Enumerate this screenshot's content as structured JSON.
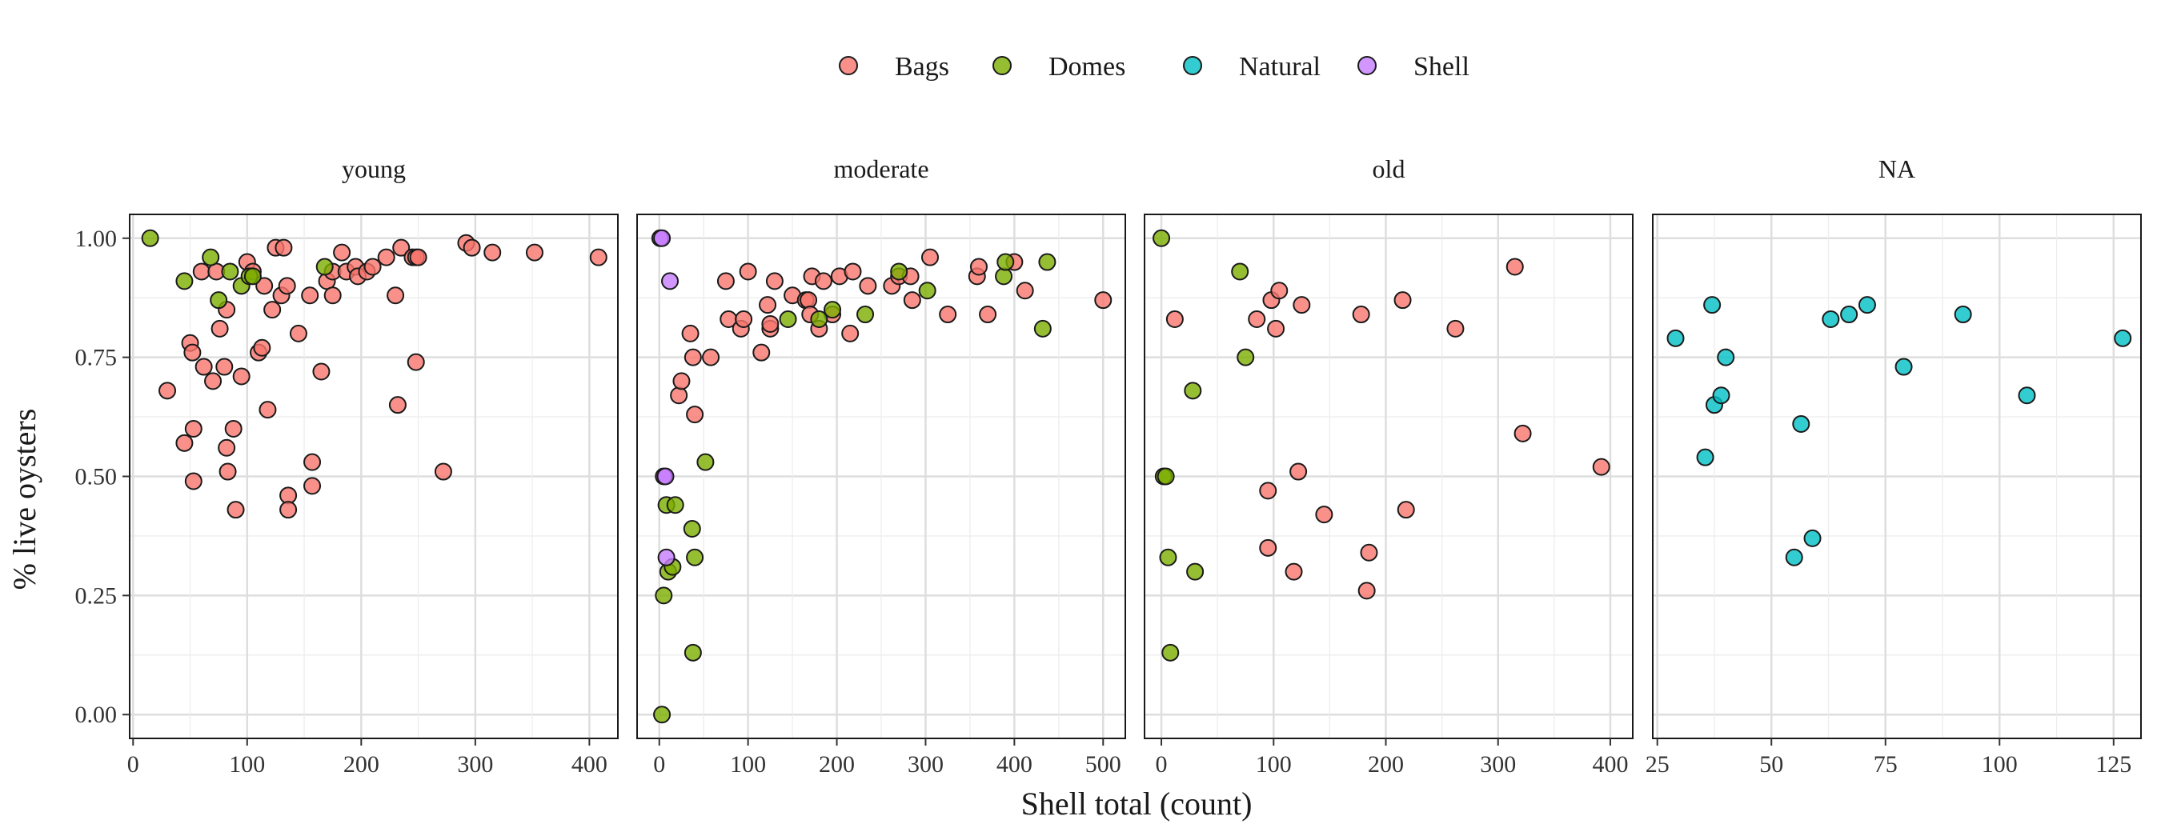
{
  "chart_data": {
    "type": "scatter",
    "xlabel": "Shell total (count)",
    "ylabel": "% live oysters",
    "legend": {
      "position": "top",
      "items": [
        {
          "name": "Bags",
          "color": "#F8766D"
        },
        {
          "name": "Domes",
          "color": "#7CAE00"
        },
        {
          "name": "Natural",
          "color": "#00BFC4"
        },
        {
          "name": "Shell",
          "color": "#C77CFF"
        }
      ]
    },
    "y_ticks": [
      "0.00",
      "0.25",
      "0.50",
      "0.75",
      "1.00"
    ],
    "ylim": [
      -0.05,
      1.05
    ],
    "grid": true,
    "facets": [
      {
        "label": "young",
        "xlim": [
          -3,
          425
        ],
        "x_ticks": [
          0,
          100,
          200,
          300,
          400
        ],
        "series": [
          {
            "name": "Bags",
            "points": [
              [
                30,
                0.68
              ],
              [
                45,
                0.57
              ],
              [
                50,
                0.78
              ],
              [
                52,
                0.76
              ],
              [
                53,
                0.6
              ],
              [
                53,
                0.49
              ],
              [
                60,
                0.93
              ],
              [
                62,
                0.73
              ],
              [
                70,
                0.7
              ],
              [
                73,
                0.93
              ],
              [
                76,
                0.81
              ],
              [
                80,
                0.73
              ],
              [
                82,
                0.85
              ],
              [
                82,
                0.56
              ],
              [
                83,
                0.51
              ],
              [
                88,
                0.6
              ],
              [
                90,
                0.43
              ],
              [
                95,
                0.71
              ],
              [
                100,
                0.95
              ],
              [
                105,
                0.93
              ],
              [
                110,
                0.76
              ],
              [
                113,
                0.77
              ],
              [
                115,
                0.9
              ],
              [
                118,
                0.64
              ],
              [
                122,
                0.85
              ],
              [
                125,
                0.98
              ],
              [
                130,
                0.88
              ],
              [
                132,
                0.98
              ],
              [
                135,
                0.9
              ],
              [
                136,
                0.46
              ],
              [
                136,
                0.43
              ],
              [
                145,
                0.8
              ],
              [
                155,
                0.88
              ],
              [
                157,
                0.53
              ],
              [
                157,
                0.48
              ],
              [
                165,
                0.72
              ],
              [
                170,
                0.91
              ],
              [
                175,
                0.88
              ],
              [
                175,
                0.93
              ],
              [
                183,
                0.97
              ],
              [
                187,
                0.93
              ],
              [
                195,
                0.94
              ],
              [
                197,
                0.92
              ],
              [
                205,
                0.93
              ],
              [
                210,
                0.94
              ],
              [
                222,
                0.96
              ],
              [
                230,
                0.88
              ],
              [
                232,
                0.65
              ],
              [
                235,
                0.98
              ],
              [
                245,
                0.96
              ],
              [
                248,
                0.96
              ],
              [
                248,
                0.74
              ],
              [
                250,
                0.96
              ],
              [
                272,
                0.51
              ],
              [
                292,
                0.99
              ],
              [
                297,
                0.98
              ],
              [
                315,
                0.97
              ],
              [
                352,
                0.97
              ],
              [
                408,
                0.96
              ]
            ]
          },
          {
            "name": "Domes",
            "points": [
              [
                15,
                1.0
              ],
              [
                45,
                0.91
              ],
              [
                68,
                0.96
              ],
              [
                75,
                0.87
              ],
              [
                85,
                0.93
              ],
              [
                95,
                0.9
              ],
              [
                102,
                0.92
              ],
              [
                105,
                0.92
              ],
              [
                168,
                0.94
              ]
            ]
          }
        ]
      },
      {
        "label": "moderate",
        "xlim": [
          -25,
          525
        ],
        "x_ticks": [
          0,
          100,
          200,
          300,
          400,
          500
        ],
        "series": [
          {
            "name": "Bags",
            "points": [
              [
                22,
                0.67
              ],
              [
                25,
                0.7
              ],
              [
                35,
                0.8
              ],
              [
                38,
                0.75
              ],
              [
                40,
                0.63
              ],
              [
                58,
                0.75
              ],
              [
                75,
                0.91
              ],
              [
                78,
                0.83
              ],
              [
                92,
                0.81
              ],
              [
                95,
                0.83
              ],
              [
                100,
                0.93
              ],
              [
                115,
                0.76
              ],
              [
                122,
                0.86
              ],
              [
                125,
                0.81
              ],
              [
                125,
                0.82
              ],
              [
                130,
                0.91
              ],
              [
                150,
                0.88
              ],
              [
                165,
                0.87
              ],
              [
                168,
                0.87
              ],
              [
                170,
                0.84
              ],
              [
                172,
                0.92
              ],
              [
                180,
                0.81
              ],
              [
                185,
                0.91
              ],
              [
                195,
                0.84
              ],
              [
                203,
                0.92
              ],
              [
                215,
                0.8
              ],
              [
                218,
                0.93
              ],
              [
                235,
                0.9
              ],
              [
                262,
                0.9
              ],
              [
                270,
                0.92
              ],
              [
                283,
                0.92
              ],
              [
                285,
                0.87
              ],
              [
                305,
                0.96
              ],
              [
                325,
                0.84
              ],
              [
                358,
                0.92
              ],
              [
                360,
                0.94
              ],
              [
                370,
                0.84
              ],
              [
                400,
                0.95
              ],
              [
                412,
                0.89
              ],
              [
                500,
                0.87
              ]
            ]
          },
          {
            "name": "Domes",
            "points": [
              [
                3,
                0.0
              ],
              [
                5,
                0.25
              ],
              [
                8,
                0.44
              ],
              [
                10,
                0.3
              ],
              [
                15,
                0.31
              ],
              [
                18,
                0.44
              ],
              [
                37,
                0.39
              ],
              [
                38,
                0.13
              ],
              [
                40,
                0.33
              ],
              [
                52,
                0.53
              ],
              [
                145,
                0.83
              ],
              [
                180,
                0.83
              ],
              [
                195,
                0.85
              ],
              [
                232,
                0.84
              ],
              [
                270,
                0.93
              ],
              [
                302,
                0.89
              ],
              [
                388,
                0.92
              ],
              [
                390,
                0.95
              ],
              [
                432,
                0.81
              ],
              [
                437,
                0.95
              ]
            ]
          },
          {
            "name": "Shell",
            "points": [
              [
                1,
                1.0
              ],
              [
                3,
                1.0
              ],
              [
                5,
                0.5
              ],
              [
                7,
                0.5
              ],
              [
                8,
                0.33
              ],
              [
                12,
                0.91
              ]
            ]
          }
        ]
      },
      {
        "label": "old",
        "xlim": [
          -15,
          420
        ],
        "x_ticks": [
          0,
          100,
          200,
          300,
          400
        ],
        "series": [
          {
            "name": "Bags",
            "points": [
              [
                12,
                0.83
              ],
              [
                85,
                0.83
              ],
              [
                95,
                0.47
              ],
              [
                95,
                0.35
              ],
              [
                98,
                0.87
              ],
              [
                102,
                0.81
              ],
              [
                105,
                0.89
              ],
              [
                118,
                0.3
              ],
              [
                122,
                0.51
              ],
              [
                125,
                0.86
              ],
              [
                145,
                0.42
              ],
              [
                178,
                0.84
              ],
              [
                183,
                0.26
              ],
              [
                185,
                0.34
              ],
              [
                215,
                0.87
              ],
              [
                218,
                0.43
              ],
              [
                262,
                0.81
              ],
              [
                315,
                0.94
              ],
              [
                322,
                0.59
              ],
              [
                392,
                0.52
              ]
            ]
          },
          {
            "name": "Domes",
            "points": [
              [
                0,
                1.0
              ],
              [
                2,
                0.5
              ],
              [
                4,
                0.5
              ],
              [
                6,
                0.33
              ],
              [
                8,
                0.13
              ],
              [
                28,
                0.68
              ],
              [
                30,
                0.3
              ],
              [
                70,
                0.93
              ],
              [
                75,
                0.75
              ]
            ]
          }
        ]
      },
      {
        "label": "NA",
        "xlim": [
          24,
          131
        ],
        "x_ticks": [
          25,
          50,
          75,
          100,
          125
        ],
        "series": [
          {
            "name": "Natural",
            "points": [
              [
                29,
                0.79
              ],
              [
                35.5,
                0.54
              ],
              [
                37,
                0.86
              ],
              [
                37.5,
                0.65
              ],
              [
                39,
                0.67
              ],
              [
                40,
                0.75
              ],
              [
                55,
                0.33
              ],
              [
                56.5,
                0.61
              ],
              [
                59,
                0.37
              ],
              [
                63,
                0.83
              ],
              [
                67,
                0.84
              ],
              [
                71,
                0.86
              ],
              [
                79,
                0.73
              ],
              [
                92,
                0.84
              ],
              [
                106,
                0.67
              ],
              [
                127,
                0.79
              ]
            ]
          }
        ]
      }
    ]
  }
}
